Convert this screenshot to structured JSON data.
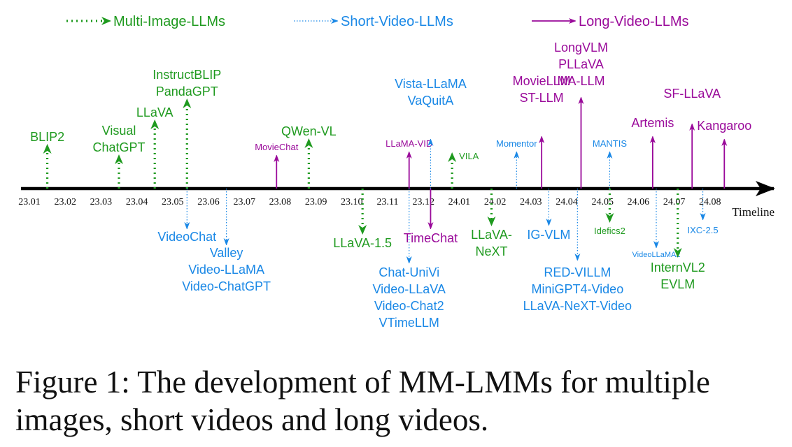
{
  "colors": {
    "multi_image": "#1f9a1f",
    "short_video": "#1a88e6",
    "long_video": "#9a0a9a",
    "axis": "#000000"
  },
  "legend": [
    {
      "category": "multi_image",
      "label": "Multi-Image-LLMs",
      "style": "dotted-arrow"
    },
    {
      "category": "short_video",
      "label": "Short-Video-LLMs",
      "style": "thin-dotted-arrow"
    },
    {
      "category": "long_video",
      "label": "Long-Video-LLMs",
      "style": "solid-arrow"
    }
  ],
  "axis": {
    "label": "Timeline",
    "ticks": [
      "23.01",
      "23.02",
      "23.03",
      "23.04",
      "23.05",
      "23.06",
      "23.07",
      "23.08",
      "23.09",
      "23.10",
      "23.11",
      "23.12",
      "24.01",
      "24.02",
      "24.03",
      "24.04",
      "24.05",
      "24.06",
      "24.07",
      "24.08"
    ]
  },
  "releases": [
    {
      "date": 23.015,
      "side": "above",
      "category": "multi_image",
      "models": [
        "BLIP2"
      ]
    },
    {
      "date": 23.035,
      "side": "above",
      "category": "multi_image",
      "models": [
        "Visual",
        "ChatGPT"
      ]
    },
    {
      "date": 23.045,
      "side": "above",
      "category": "multi_image",
      "models": [
        "LLaVA"
      ]
    },
    {
      "date": 23.054,
      "side": "above",
      "category": "multi_image",
      "models": [
        "InstructBLIP",
        "PandaGPT"
      ]
    },
    {
      "date": 23.054,
      "side": "below",
      "category": "short_video",
      "models": [
        "VideoChat"
      ]
    },
    {
      "date": 23.065,
      "side": "below",
      "category": "short_video",
      "models": [
        "Valley",
        "Video-LLaMA",
        "Video-ChatGPT"
      ]
    },
    {
      "date": 23.079,
      "side": "above",
      "category": "long_video",
      "models": [
        "MovieChat"
      ]
    },
    {
      "date": 23.088,
      "side": "above",
      "category": "multi_image",
      "models": [
        "QWen-VL"
      ]
    },
    {
      "date": 23.103,
      "side": "below",
      "category": "multi_image",
      "models": [
        "LLaVA-1.5"
      ]
    },
    {
      "date": 23.116,
      "side": "above",
      "category": "long_video",
      "models": [
        "LLaMA-VID"
      ]
    },
    {
      "date": 23.116,
      "side": "below",
      "category": "short_video",
      "models": [
        "Chat-UniVi",
        "Video-LLaVA",
        "Video-Chat2",
        "VTimeLLM"
      ]
    },
    {
      "date": 23.122,
      "side": "above",
      "category": "short_video",
      "models": [
        "Vista-LLaMA",
        "VaQuitA"
      ]
    },
    {
      "date": 23.122,
      "side": "below",
      "category": "long_video",
      "models": [
        "TimeChat"
      ]
    },
    {
      "date": 23.128,
      "side": "above",
      "category": "multi_image",
      "models": [
        "VILA"
      ]
    },
    {
      "date": 24.019,
      "side": "below",
      "category": "multi_image",
      "models": [
        "LLaVA-",
        "NeXT"
      ]
    },
    {
      "date": 24.026,
      "side": "above",
      "category": "short_video",
      "models": [
        "Momentor"
      ]
    },
    {
      "date": 24.033,
      "side": "above",
      "category": "long_video",
      "models": [
        "MovieLLM",
        "ST-LLM"
      ]
    },
    {
      "date": 24.035,
      "side": "below",
      "category": "short_video",
      "models": [
        "IG-VLM"
      ]
    },
    {
      "date": 24.044,
      "side": "above",
      "category": "long_video",
      "models": [
        "LongVLM",
        "PLLaVA",
        "MA-LLM"
      ]
    },
    {
      "date": 24.043,
      "side": "below",
      "category": "short_video",
      "models": [
        "RED-VILLM",
        "MiniGPT4-Video",
        "LLaVA-NeXT-Video"
      ]
    },
    {
      "date": 24.052,
      "side": "above",
      "category": "short_video",
      "models": [
        "MANTIS"
      ]
    },
    {
      "date": 24.052,
      "side": "below",
      "category": "multi_image",
      "models": [
        "Idefics2"
      ]
    },
    {
      "date": 24.064,
      "side": "above",
      "category": "long_video",
      "models": [
        "Artemis"
      ]
    },
    {
      "date": 24.065,
      "side": "below",
      "category": "short_video",
      "models": [
        "VideoLLaMA2"
      ]
    },
    {
      "date": 24.071,
      "side": "below",
      "category": "multi_image",
      "models": [
        "InternVL2",
        "EVLM"
      ]
    },
    {
      "date": 24.075,
      "side": "above",
      "category": "long_video",
      "models": [
        "SF-LLaVA"
      ]
    },
    {
      "date": 24.078,
      "side": "below",
      "category": "short_video",
      "models": [
        "IXC-2.5"
      ]
    },
    {
      "date": 24.084,
      "side": "above",
      "category": "long_video",
      "models": [
        "Kangaroo"
      ]
    }
  ],
  "caption": {
    "line1": "Figure 1: The development of MM-LMMs for multiple",
    "line2": "images, short videos and long videos."
  }
}
